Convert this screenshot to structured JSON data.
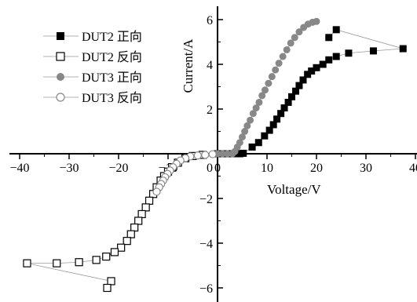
{
  "chart_data": {
    "type": "scatter",
    "xlabel": "Voltage/V",
    "ylabel": "Current/A",
    "xlim": [
      -40,
      40
    ],
    "ylim": [
      -6.5,
      6.5
    ],
    "x_ticks": [
      -40,
      -30,
      -20,
      -10,
      0,
      10,
      20,
      30,
      40
    ],
    "y_ticks": [
      -6,
      -4,
      -2,
      0,
      2,
      4,
      6
    ],
    "x_tick_labels": [
      "−40",
      "−30",
      "−20",
      "−10",
      "0",
      "10",
      "20",
      "30",
      "40"
    ],
    "y_tick_labels": [
      "−6",
      "−4",
      "−2",
      "0",
      "2",
      "4",
      "6"
    ],
    "grid": false,
    "legend_position": "top-left",
    "series": [
      {
        "name": "DUT2 正向",
        "marker": "filled-square",
        "color": "#000000",
        "points": [
          [
            0,
            0
          ],
          [
            0.8,
            0
          ],
          [
            1.5,
            0
          ],
          [
            2.2,
            0
          ],
          [
            3,
            0
          ],
          [
            3.8,
            0
          ],
          [
            4.5,
            0
          ],
          [
            5.2,
            0.02
          ],
          [
            7,
            0.3
          ],
          [
            8.3,
            0.5
          ],
          [
            9.5,
            0.8
          ],
          [
            10.5,
            1.05
          ],
          [
            11.3,
            1.3
          ],
          [
            12,
            1.55
          ],
          [
            12.8,
            1.8
          ],
          [
            13.5,
            2.05
          ],
          [
            14.3,
            2.3
          ],
          [
            15,
            2.55
          ],
          [
            15.8,
            2.8
          ],
          [
            16.5,
            3.05
          ],
          [
            17.3,
            3.3
          ],
          [
            18.2,
            3.55
          ],
          [
            19,
            3.7
          ],
          [
            20,
            3.85
          ],
          [
            21.3,
            4.0
          ],
          [
            22.5,
            4.2
          ],
          [
            24,
            4.35
          ],
          [
            26.5,
            4.5
          ],
          [
            31.5,
            4.6
          ],
          [
            37.5,
            4.7
          ],
          [
            24,
            5.55
          ],
          [
            22.5,
            5.2
          ]
        ]
      },
      {
        "name": "DUT2 反向",
        "marker": "open-square",
        "color": "#000000",
        "points": [
          [
            -3,
            -0.05
          ],
          [
            -5,
            -0.1
          ],
          [
            -6.5,
            -0.2
          ],
          [
            -8,
            -0.4
          ],
          [
            -9.2,
            -0.6
          ],
          [
            -10,
            -0.8
          ],
          [
            -10.8,
            -1.0
          ],
          [
            -11.5,
            -1.2
          ],
          [
            -12.3,
            -1.5
          ],
          [
            -13,
            -1.8
          ],
          [
            -13.8,
            -2.1
          ],
          [
            -14.5,
            -2.4
          ],
          [
            -15.3,
            -2.7
          ],
          [
            -16,
            -3.0
          ],
          [
            -16.8,
            -3.3
          ],
          [
            -17.5,
            -3.6
          ],
          [
            -18.3,
            -3.9
          ],
          [
            -19.5,
            -4.2
          ],
          [
            -20.8,
            -4.4
          ],
          [
            -22.5,
            -4.6
          ],
          [
            -24.5,
            -4.75
          ],
          [
            -28,
            -4.85
          ],
          [
            -32.5,
            -4.9
          ],
          [
            -38.5,
            -4.9
          ],
          [
            -21.5,
            -5.7
          ],
          [
            -22.3,
            -6.0
          ]
        ]
      },
      {
        "name": "DUT3 正向",
        "marker": "filled-circle",
        "color": "#888888",
        "points": [
          [
            0,
            0
          ],
          [
            1,
            0
          ],
          [
            2,
            0
          ],
          [
            3,
            0
          ],
          [
            3.5,
            0.1
          ],
          [
            4,
            0.3
          ],
          [
            4.5,
            0.5
          ],
          [
            5,
            0.75
          ],
          [
            5.5,
            1.0
          ],
          [
            6,
            1.25
          ],
          [
            6.6,
            1.5
          ],
          [
            7.2,
            1.8
          ],
          [
            7.8,
            2.05
          ],
          [
            8.4,
            2.3
          ],
          [
            9,
            2.6
          ],
          [
            9.6,
            2.85
          ],
          [
            10.3,
            3.15
          ],
          [
            11,
            3.45
          ],
          [
            11.7,
            3.75
          ],
          [
            12.4,
            4.05
          ],
          [
            13.2,
            4.35
          ],
          [
            14,
            4.65
          ],
          [
            14.8,
            4.95
          ],
          [
            15.6,
            5.2
          ],
          [
            16.5,
            5.45
          ],
          [
            17.4,
            5.65
          ],
          [
            18.3,
            5.8
          ],
          [
            19.2,
            5.88
          ],
          [
            20,
            5.92
          ]
        ]
      },
      {
        "name": "DUT3 反向",
        "marker": "open-circle",
        "color": "#888888",
        "points": [
          [
            -1,
            -0.02
          ],
          [
            -2.5,
            -0.05
          ],
          [
            -4,
            -0.08
          ],
          [
            -5.5,
            -0.12
          ],
          [
            -6.5,
            -0.2
          ],
          [
            -7.5,
            -0.3
          ],
          [
            -8.3,
            -0.45
          ],
          [
            -9,
            -0.6
          ],
          [
            -9.6,
            -0.75
          ],
          [
            -10.1,
            -0.9
          ],
          [
            -10.6,
            -1.05
          ],
          [
            -11,
            -1.2
          ],
          [
            -11.4,
            -1.35
          ],
          [
            -11.8,
            -1.5
          ],
          [
            -12.3,
            -1.7
          ]
        ]
      }
    ]
  }
}
